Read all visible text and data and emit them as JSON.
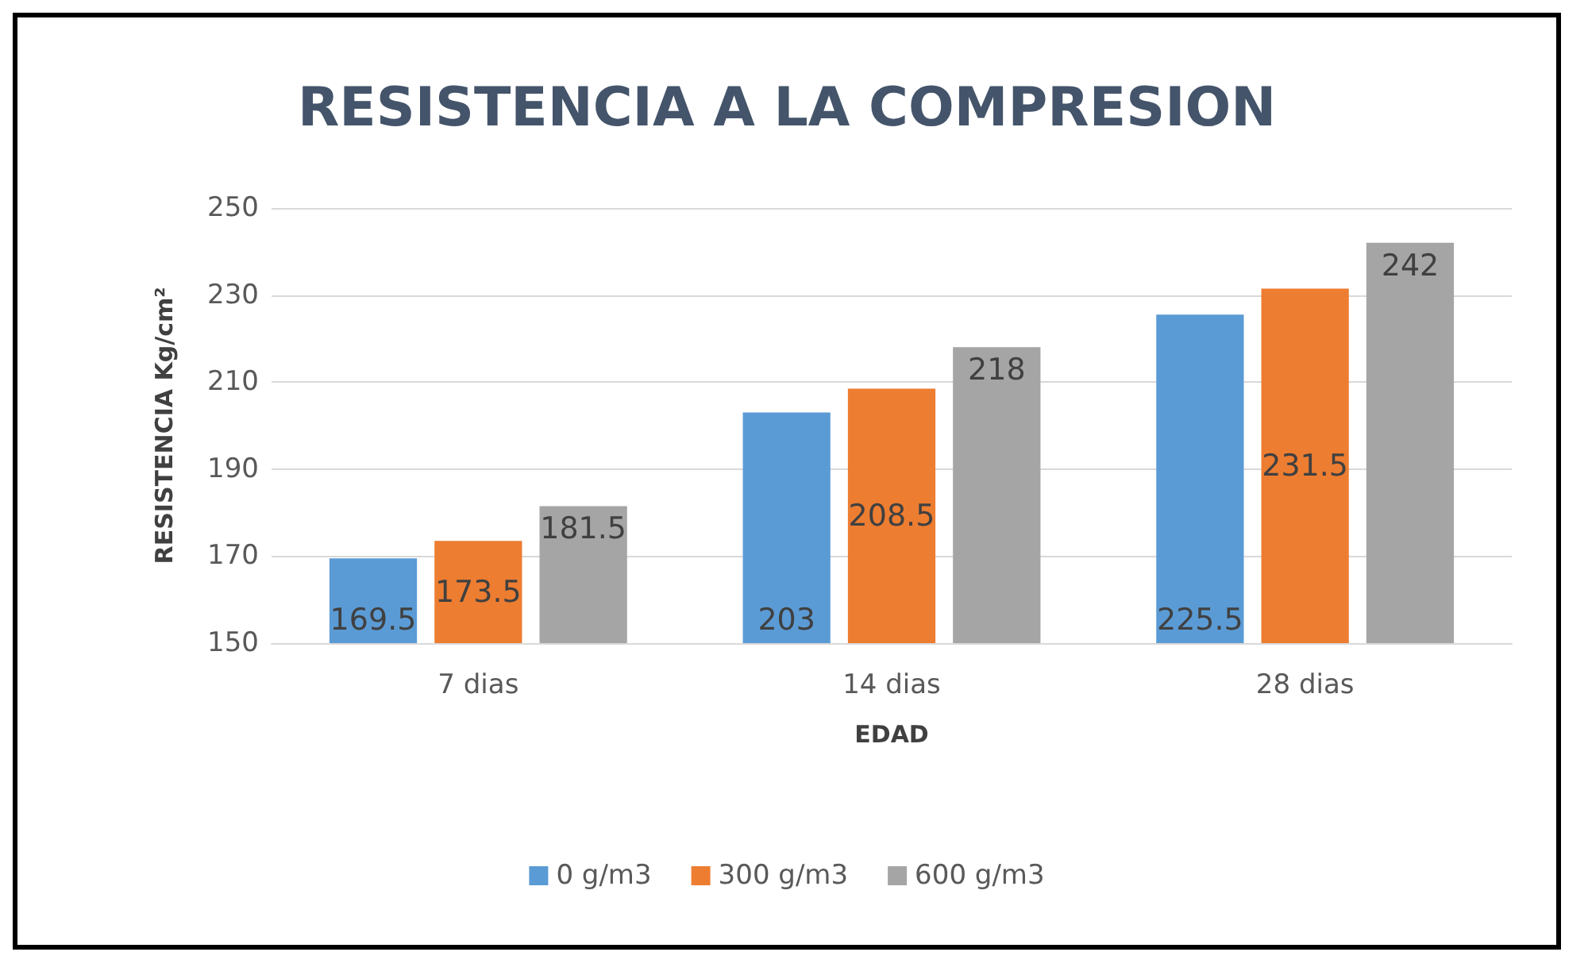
{
  "chart_data": {
    "type": "bar",
    "title": "RESISTENCIA A LA COMPRESION",
    "xlabel": "EDAD",
    "ylabel": "RESISTENCIA Kg/cm²",
    "categories": [
      "7 dias",
      "14 dias",
      "28 dias"
    ],
    "series": [
      {
        "name": "0 g/m3",
        "color": "#5b9bd5",
        "values": [
          169.5,
          203,
          225.5
        ]
      },
      {
        "name": "300 g/m3",
        "color": "#ed7d31",
        "values": [
          173.5,
          208.5,
          231.5
        ]
      },
      {
        "name": "600 g/m3",
        "color": "#a5a5a5",
        "values": [
          181.5,
          218,
          242
        ]
      }
    ],
    "ylim": [
      150,
      250
    ],
    "yticks": [
      150,
      170,
      190,
      210,
      230,
      250
    ],
    "grid": "y",
    "legend": "bottom",
    "data_labels": true
  }
}
